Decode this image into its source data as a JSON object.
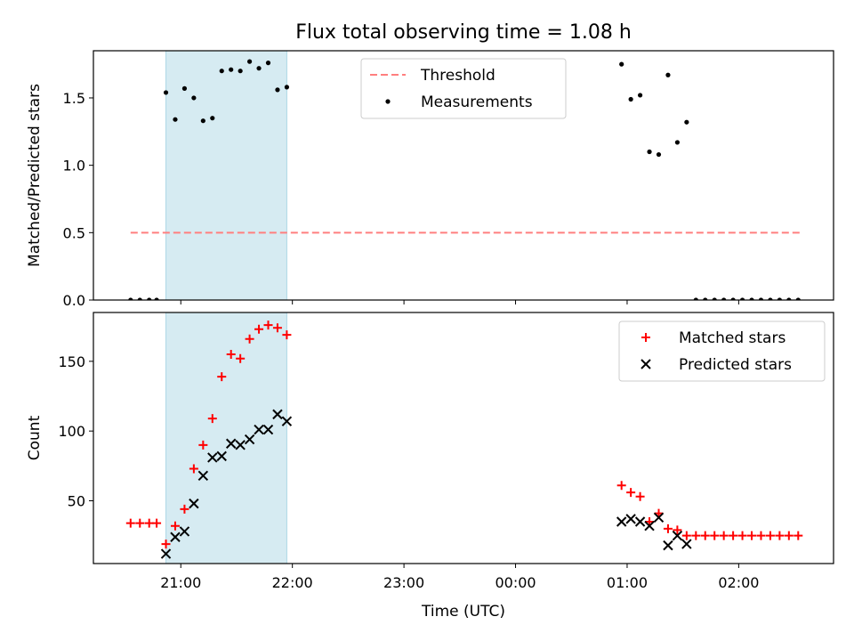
{
  "figure": {
    "title": "Flux total observing time = 1.08 h",
    "xlabel": "Time (UTC)"
  },
  "chart_data": [
    {
      "type": "scatter",
      "ylabel": "Matched/Predicted stars",
      "xlim": [
        "20:13",
        "02:51"
      ],
      "ylim": [
        0,
        1.85
      ],
      "yticks": [
        0.0,
        0.5,
        1.0,
        1.5
      ],
      "ytick_labels": [
        "0.0",
        "0.5",
        "1.0",
        "1.5"
      ],
      "grid": false,
      "legend_position": "top-center",
      "highlight_span": {
        "x": [
          "20:52",
          "21:57"
        ],
        "color": "#add8e6"
      },
      "series": [
        {
          "name": "Threshold",
          "kind": "dashed-line",
          "color": "#ff7f7f",
          "x": [
            "20:33",
            "02:33"
          ],
          "y": [
            0.5,
            0.5
          ]
        },
        {
          "name": "Measurements",
          "kind": "dot",
          "color": "#000000",
          "x": [
            "20:33",
            "20:38",
            "20:43",
            "20:47",
            "20:52",
            "20:57",
            "21:02",
            "21:07",
            "21:12",
            "21:17",
            "21:22",
            "21:27",
            "21:32",
            "21:37",
            "21:42",
            "21:47",
            "21:52",
            "21:57",
            "00:57",
            "01:02",
            "01:07",
            "01:12",
            "01:17",
            "01:22",
            "01:27",
            "01:32",
            "01:37",
            "01:42",
            "01:47",
            "01:52",
            "01:57",
            "02:02",
            "02:07",
            "02:12",
            "02:17",
            "02:22",
            "02:27",
            "02:32"
          ],
          "y": [
            0.0,
            0.0,
            0.0,
            0.0,
            1.54,
            1.34,
            1.57,
            1.5,
            1.33,
            1.35,
            1.7,
            1.71,
            1.7,
            1.77,
            1.72,
            1.76,
            1.56,
            1.58,
            1.75,
            1.49,
            1.52,
            1.1,
            1.08,
            1.67,
            1.17,
            1.32,
            0.0,
            0.0,
            0.0,
            0.0,
            0.0,
            0.0,
            0.0,
            0.0,
            0.0,
            0.0,
            0.0,
            0.0
          ]
        }
      ]
    },
    {
      "type": "scatter",
      "ylabel": "Count",
      "xlim": [
        "20:13",
        "02:51"
      ],
      "ylim": [
        5,
        185
      ],
      "yticks": [
        50,
        100,
        150
      ],
      "ytick_labels": [
        "50",
        "100",
        "150"
      ],
      "xticks": [
        "21:00",
        "22:00",
        "23:00",
        "00:00",
        "01:00",
        "02:00"
      ],
      "xtick_labels": [
        "21:00",
        "22:00",
        "23:00",
        "00:00",
        "01:00",
        "02:00"
      ],
      "grid": false,
      "legend_position": "top-right",
      "highlight_span": {
        "x": [
          "20:52",
          "21:57"
        ],
        "color": "#add8e6"
      },
      "series": [
        {
          "name": "Matched stars",
          "kind": "plus",
          "color": "#ff0000",
          "x": [
            "20:33",
            "20:38",
            "20:43",
            "20:47",
            "20:52",
            "20:57",
            "21:02",
            "21:07",
            "21:12",
            "21:17",
            "21:22",
            "21:27",
            "21:32",
            "21:37",
            "21:42",
            "21:47",
            "21:52",
            "21:57",
            "00:57",
            "01:02",
            "01:07",
            "01:12",
            "01:17",
            "01:22",
            "01:27",
            "01:32",
            "01:37",
            "01:42",
            "01:47",
            "01:52",
            "01:57",
            "02:02",
            "02:07",
            "02:12",
            "02:17",
            "02:22",
            "02:27",
            "02:32"
          ],
          "y": [
            34,
            34,
            34,
            34,
            19,
            32,
            44,
            73,
            90,
            109,
            139,
            155,
            152,
            166,
            173,
            176,
            174,
            169,
            61,
            56,
            53,
            35,
            41,
            30,
            29,
            25,
            25,
            25,
            25,
            25,
            25,
            25,
            25,
            25,
            25,
            25,
            25,
            25
          ]
        },
        {
          "name": "Predicted stars",
          "kind": "x",
          "color": "#000000",
          "x": [
            "20:52",
            "20:57",
            "21:02",
            "21:07",
            "21:12",
            "21:17",
            "21:22",
            "21:27",
            "21:32",
            "21:37",
            "21:42",
            "21:47",
            "21:52",
            "21:57",
            "00:57",
            "01:02",
            "01:07",
            "01:12",
            "01:17",
            "01:22",
            "01:27",
            "01:32"
          ],
          "y": [
            12,
            24,
            28,
            48,
            68,
            81,
            82,
            91,
            90,
            94,
            101,
            101,
            112,
            107,
            35,
            37,
            35,
            32,
            38,
            18,
            25,
            19
          ]
        }
      ]
    }
  ]
}
